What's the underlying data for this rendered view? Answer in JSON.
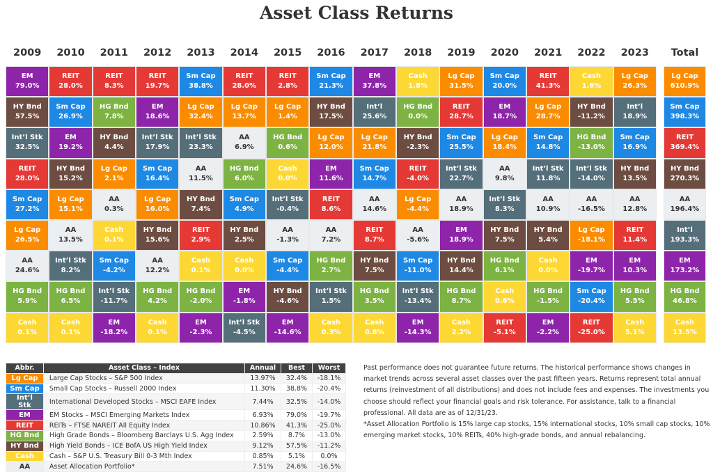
{
  "title": "Asset Class Returns",
  "colors": {
    "Lg Cap": "#fb8c00",
    "Sm Cap": "#1e88e5",
    "Int’l Stk": "#546e7a",
    "Int’l": "#546e7a",
    "EM": "#8e24aa",
    "REIT": "#e53935",
    "HG Bnd": "#7cb342",
    "HY Bnd": "#6d4c41",
    "Cash": "#fdd835",
    "AA": "#eceff1"
  },
  "chart_data": {
    "type": "table",
    "title": "Asset Class Returns",
    "columns": [
      {
        "year": "2009",
        "cells": [
          [
            "EM",
            "79.0%"
          ],
          [
            "HY Bnd",
            "57.5%"
          ],
          [
            "Int’l Stk",
            "32.5%"
          ],
          [
            "REIT",
            "28.0%"
          ],
          [
            "Sm Cap",
            "27.2%"
          ],
          [
            "Lg Cap",
            "26.5%"
          ],
          [
            "AA",
            "24.6%"
          ],
          [
            "HG Bnd",
            "5.9%"
          ],
          [
            "Cash",
            "0.1%"
          ]
        ]
      },
      {
        "year": "2010",
        "cells": [
          [
            "REIT",
            "28.0%"
          ],
          [
            "Sm Cap",
            "26.9%"
          ],
          [
            "EM",
            "19.2%"
          ],
          [
            "HY Bnd",
            "15.2%"
          ],
          [
            "Lg Cap",
            "15.1%"
          ],
          [
            "AA",
            "13.5%"
          ],
          [
            "Int’l Stk",
            "8.2%"
          ],
          [
            "HG Bnd",
            "6.5%"
          ],
          [
            "Cash",
            "0.1%"
          ]
        ]
      },
      {
        "year": "2011",
        "cells": [
          [
            "REIT",
            "8.3%"
          ],
          [
            "HG Bnd",
            "7.8%"
          ],
          [
            "HY Bnd",
            "4.4%"
          ],
          [
            "Lg Cap",
            "2.1%"
          ],
          [
            "AA",
            "0.3%"
          ],
          [
            "Cash",
            "0.1%"
          ],
          [
            "Sm Cap",
            "-4.2%"
          ],
          [
            "Int’l Stk",
            "-11.7%"
          ],
          [
            "EM",
            "-18.2%"
          ]
        ]
      },
      {
        "year": "2012",
        "cells": [
          [
            "REIT",
            "19.7%"
          ],
          [
            "EM",
            "18.6%"
          ],
          [
            "Int’l Stk",
            "17.9%"
          ],
          [
            "Sm Cap",
            "16.4%"
          ],
          [
            "Lg Cap",
            "16.0%"
          ],
          [
            "HY Bnd",
            "15.6%"
          ],
          [
            "AA",
            "12.2%"
          ],
          [
            "HG Bnd",
            "4.2%"
          ],
          [
            "Cash",
            "0.1%"
          ]
        ]
      },
      {
        "year": "2013",
        "cells": [
          [
            "Sm Cap",
            "38.8%"
          ],
          [
            "Lg Cap",
            "32.4%"
          ],
          [
            "Int’l Stk",
            "23.3%"
          ],
          [
            "AA",
            "11.5%"
          ],
          [
            "HY Bnd",
            "7.4%"
          ],
          [
            "REIT",
            "2.9%"
          ],
          [
            "Cash",
            "0.1%"
          ],
          [
            "HG Bnd",
            "-2.0%"
          ],
          [
            "EM",
            "-2.3%"
          ]
        ]
      },
      {
        "year": "2014",
        "cells": [
          [
            "REIT",
            "28.0%"
          ],
          [
            "Lg Cap",
            "13.7%"
          ],
          [
            "AA",
            "6.9%"
          ],
          [
            "HG Bnd",
            "6.0%"
          ],
          [
            "Sm Cap",
            "4.9%"
          ],
          [
            "HY Bnd",
            "2.5%"
          ],
          [
            "Cash",
            "0.0%"
          ],
          [
            "EM",
            "-1.8%"
          ],
          [
            "Int’l Stk",
            "-4.5%"
          ]
        ]
      },
      {
        "year": "2015",
        "cells": [
          [
            "REIT",
            "2.8%"
          ],
          [
            "Lg Cap",
            "1.4%"
          ],
          [
            "HG Bnd",
            "0.6%"
          ],
          [
            "Cash",
            "0.0%"
          ],
          [
            "Int’l Stk",
            "-0.4%"
          ],
          [
            "AA",
            "-1.3%"
          ],
          [
            "Sm Cap",
            "-4.4%"
          ],
          [
            "HY Bnd",
            "-4.6%"
          ],
          [
            "EM",
            "-14.6%"
          ]
        ]
      },
      {
        "year": "2016",
        "cells": [
          [
            "Sm Cap",
            "21.3%"
          ],
          [
            "HY Bnd",
            "17.5%"
          ],
          [
            "Lg Cap",
            "12.0%"
          ],
          [
            "EM",
            "11.6%"
          ],
          [
            "REIT",
            "8.6%"
          ],
          [
            "AA",
            "7.2%"
          ],
          [
            "HG Bnd",
            "2.7%"
          ],
          [
            "Int’l Stk",
            "1.5%"
          ],
          [
            "Cash",
            "0.3%"
          ]
        ]
      },
      {
        "year": "2017",
        "cells": [
          [
            "EM",
            "37.8%"
          ],
          [
            "Int’l",
            "25.6%"
          ],
          [
            "Lg Cap",
            "21.8%"
          ],
          [
            "Sm Cap",
            "14.7%"
          ],
          [
            "AA",
            "14.6%"
          ],
          [
            "REIT",
            "8.7%"
          ],
          [
            "HY Bnd",
            "7.5%"
          ],
          [
            "HG Bnd",
            "3.5%"
          ],
          [
            "Cash",
            "0.8%"
          ]
        ]
      },
      {
        "year": "2018",
        "cells": [
          [
            "Cash",
            "1.8%"
          ],
          [
            "HG Bnd",
            "0.0%"
          ],
          [
            "HY Bnd",
            "-2.3%"
          ],
          [
            "REIT",
            "-4.0%"
          ],
          [
            "Lg Cap",
            "-4.4%"
          ],
          [
            "AA",
            "-5.6%"
          ],
          [
            "Sm Cap",
            "-11.0%"
          ],
          [
            "Int’l Stk",
            "-13.4%"
          ],
          [
            "EM",
            "-14.3%"
          ]
        ]
      },
      {
        "year": "2019",
        "cells": [
          [
            "Lg Cap",
            "31.5%"
          ],
          [
            "REIT",
            "28.7%"
          ],
          [
            "Sm Cap",
            "25.5%"
          ],
          [
            "Int’l Stk",
            "22.7%"
          ],
          [
            "AA",
            "18.9%"
          ],
          [
            "EM",
            "18.9%"
          ],
          [
            "HY Bnd",
            "14.4%"
          ],
          [
            "HG Bnd",
            "8.7%"
          ],
          [
            "Cash",
            "2.2%"
          ]
        ]
      },
      {
        "year": "2020",
        "cells": [
          [
            "Sm Cap",
            "20.0%"
          ],
          [
            "EM",
            "18.7%"
          ],
          [
            "Lg Cap",
            "18.4%"
          ],
          [
            "AA",
            "9.8%"
          ],
          [
            "Int’l Stk",
            "8.3%"
          ],
          [
            "HY Bnd",
            "7.5%"
          ],
          [
            "HG Bnd",
            "6.1%"
          ],
          [
            "Cash",
            "0.6%"
          ],
          [
            "REIT",
            "-5.1%"
          ]
        ]
      },
      {
        "year": "2021",
        "cells": [
          [
            "REIT",
            "41.3%"
          ],
          [
            "Lg Cap",
            "28.7%"
          ],
          [
            "Sm Cap",
            "14.8%"
          ],
          [
            "Int’l Stk",
            "11.8%"
          ],
          [
            "AA",
            "10.9%"
          ],
          [
            "HY Bnd",
            "5.4%"
          ],
          [
            "Cash",
            "0.0%"
          ],
          [
            "HG Bnd",
            "-1.5%"
          ],
          [
            "EM",
            "-2.2%"
          ]
        ]
      },
      {
        "year": "2022",
        "cells": [
          [
            "Cash",
            "1.6%"
          ],
          [
            "HY Bnd",
            "-11.2%"
          ],
          [
            "HG Bnd",
            "-13.0%"
          ],
          [
            "Int’l Stk",
            "-14.0%"
          ],
          [
            "AA",
            "-16.5%"
          ],
          [
            "Lg Cap",
            "-18.1%"
          ],
          [
            "EM",
            "-19.7%"
          ],
          [
            "Sm Cap",
            "-20.4%"
          ],
          [
            "REIT",
            "-25.0%"
          ]
        ]
      },
      {
        "year": "2023",
        "cells": [
          [
            "Lg Cap",
            "26.3%"
          ],
          [
            "Int’l",
            "18.9%"
          ],
          [
            "Sm Cap",
            "16.9%"
          ],
          [
            "HY Bnd",
            "13.5%"
          ],
          [
            "AA",
            "12.8%"
          ],
          [
            "REIT",
            "11.4%"
          ],
          [
            "EM",
            "10.3%"
          ],
          [
            "HG Bnd",
            "5.5%"
          ],
          [
            "Cash",
            "5.1%"
          ]
        ]
      }
    ],
    "total": {
      "year": "Total",
      "cells": [
        [
          "Lg Cap",
          "610.9%"
        ],
        [
          "Sm Cap",
          "398.3%"
        ],
        [
          "REIT",
          "369.4%"
        ],
        [
          "HY Bnd",
          "270.3%"
        ],
        [
          "AA",
          "196.4%"
        ],
        [
          "Int’l",
          "193.3%"
        ],
        [
          "EM",
          "173.2%"
        ],
        [
          "HG Bnd",
          "46.8%"
        ],
        [
          "Cash",
          "13.5%"
        ]
      ]
    }
  },
  "legend": {
    "headers": [
      "Abbr.",
      "Asset Class – Index",
      "Annual",
      "Best",
      "Worst"
    ],
    "rows": [
      [
        "Lg Cap",
        "Large Cap Stocks – S&P 500 Index",
        "13.97%",
        "32.4%",
        "-18.1%"
      ],
      [
        "Sm Cap",
        "Small Cap Stocks – Russell 2000 Index",
        "11.30%",
        "38.8%",
        "-20.4%"
      ],
      [
        "Int’l Stk",
        "International Developed Stocks – MSCI EAFE Index",
        "7.44%",
        "32.5%",
        "-14.0%"
      ],
      [
        "EM",
        "EM Stocks – MSCI Emerging Markets Index",
        "6.93%",
        "79.0%",
        "-19.7%"
      ],
      [
        "REIT",
        "REITs – FTSE NAREIT All Equity Index",
        "10.86%",
        "41.3%",
        "-25.0%"
      ],
      [
        "HG Bnd",
        "High Grade Bonds – Bloomberg Barclays U.S. Agg Index",
        "2.59%",
        "8.7%",
        "-13.0%"
      ],
      [
        "HY Bnd",
        "High Yield Bonds – ICE BofA US High Yield Index",
        "9.12%",
        "57.5%",
        "-11.2%"
      ],
      [
        "Cash",
        "Cash – S&P U.S. Treasury Bill 0-3 Mth Index",
        "0.85%",
        "5.1%",
        "0.0%"
      ],
      [
        "AA",
        "Asset Allocation Portfolio*",
        "7.51%",
        "24.6%",
        "-16.5%"
      ]
    ]
  },
  "notes": {
    "disclaimer": "Past performance does not guarantee future returns. The historical performance shows changes in market trends across several asset classes over the past fifteen years. Returns represent total annual returns (reinvestment of all distributions) and does not include fees and expenses. The investments you choose should reflect your financial goals and risk tolerance. For assistance, talk to a financial professional. All data are as of 12/31/23.",
    "footnote": "*Asset Allocation Portfolio is 15% large cap stocks, 15% international stocks, 10% small cap stocks, 10% emerging market stocks, 10% REITs, 40% high-grade bonds, and annual rebalancing."
  }
}
